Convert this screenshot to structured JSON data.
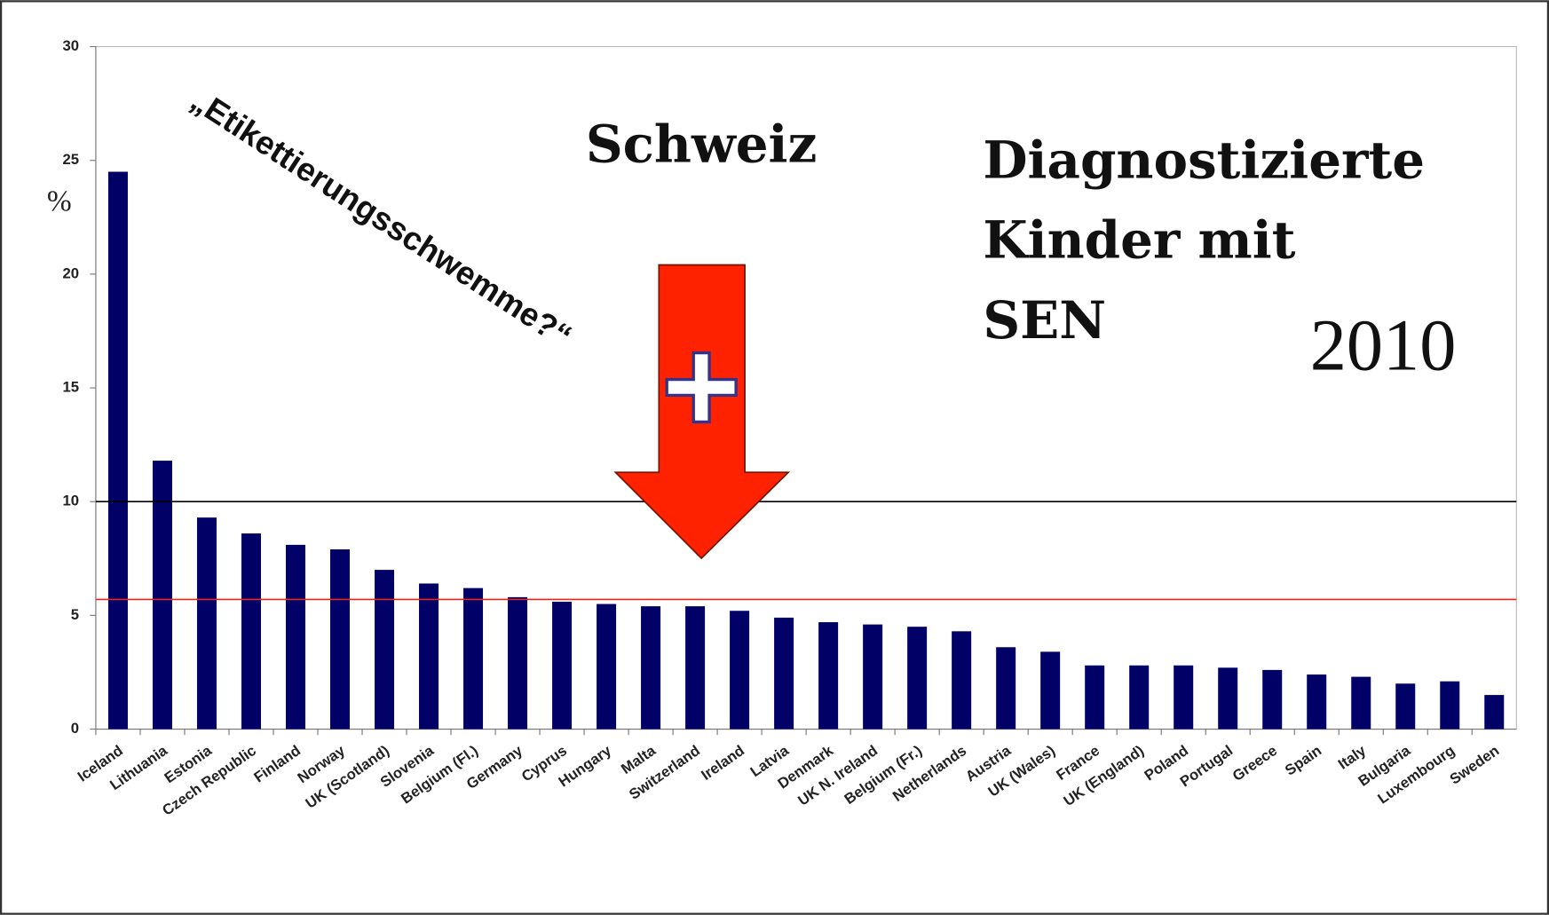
{
  "chart_data": {
    "type": "bar",
    "y_label": "%",
    "categories": [
      "Iceland",
      "Lithuania",
      "Estonia",
      "Czech Republic",
      "Finland",
      "Norway",
      "UK (Scotland)",
      "Slovenia",
      "Belgium (Fl.)",
      "Germany",
      "Cyprus",
      "Hungary",
      "Malta",
      "Switzerland",
      "Ireland",
      "Latvia",
      "Denmark",
      "UK N. Ireland",
      "Belgium (Fr.)",
      "Netherlands",
      "Austria",
      "UK  (Wales)",
      "France",
      "UK (England)",
      "Poland",
      "Portugal",
      "Greece",
      "Spain",
      "Italy",
      "Bulgaria",
      "Luxembourg",
      "Sweden"
    ],
    "values": [
      24.5,
      11.8,
      9.3,
      8.6,
      8.1,
      7.9,
      7.0,
      6.4,
      6.2,
      5.8,
      5.6,
      5.5,
      5.4,
      5.4,
      5.2,
      4.9,
      4.7,
      4.6,
      4.5,
      4.3,
      3.6,
      3.4,
      2.8,
      2.8,
      2.8,
      2.7,
      2.6,
      2.4,
      2.3,
      2.0,
      2.1,
      1.5
    ],
    "color": "#000066",
    "ylim": [
      0,
      30
    ],
    "yticks": [
      0,
      5,
      10,
      15,
      20,
      25,
      30
    ],
    "reference_lines": [
      {
        "value": 10,
        "color": "#000000"
      },
      {
        "value": 5.7,
        "color": "#e8251a"
      }
    ],
    "annotations": {
      "tag": "„Etikettierungsschwemme?“",
      "country": "Schweiz",
      "title_lines": [
        "Diagnostizierte",
        "Kinder mit",
        "SEN"
      ],
      "year": "2010"
    }
  }
}
